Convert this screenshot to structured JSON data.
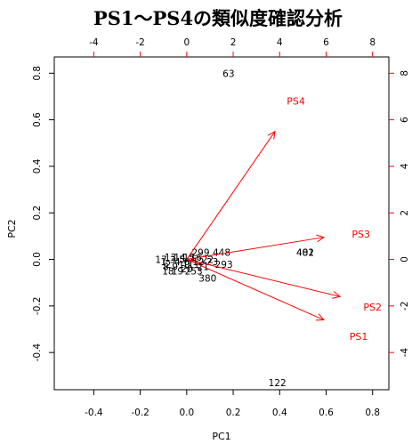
{
  "chart_data": {
    "type": "scatter",
    "subtype": "biplot",
    "title": "PS1～PS4の類似度確認分析",
    "xlabel": "PC1",
    "ylabel": "PC2",
    "grid": false,
    "legend": "none",
    "xlim": [
      -0.57,
      0.87
    ],
    "ylim": [
      -0.56,
      0.87
    ],
    "x_ticks": [
      "-0.4",
      "-0.2",
      "0.0",
      "0.2",
      "0.4",
      "0.6",
      "0.8"
    ],
    "y_ticks": [
      "-0.4",
      "-0.2",
      "0.0",
      "0.2",
      "0.4",
      "0.6",
      "0.8"
    ],
    "top_axis": {
      "lim": [
        -5.7,
        8.7
      ],
      "ticks": [
        "-4",
        "-2",
        "0",
        "2",
        "4",
        "6",
        "8"
      ],
      "color": "#ff0000"
    },
    "right_axis": {
      "lim": [
        -5.6,
        8.7
      ],
      "ticks": [
        "-4",
        "-2",
        "0",
        "2",
        "4",
        "6",
        "8"
      ],
      "color": "#ff0000"
    },
    "observations": [
      {
        "label": "63",
        "x": 0.18,
        "y": 0.8
      },
      {
        "label": "122",
        "x": 0.39,
        "y": -0.53
      },
      {
        "label": "481",
        "x": 0.51,
        "y": 0.03
      },
      {
        "label": "402",
        "x": 0.51,
        "y": 0.03
      },
      {
        "label": "448",
        "x": 0.15,
        "y": 0.03
      },
      {
        "label": "293",
        "x": 0.16,
        "y": -0.02
      },
      {
        "label": "380",
        "x": 0.09,
        "y": -0.08
      },
      {
        "label": "253",
        "x": 0.03,
        "y": -0.05
      },
      {
        "label": "299",
        "x": 0.06,
        "y": 0.03
      },
      {
        "label": "1",
        "x": -0.1,
        "y": -0.01
      },
      {
        "label": "2",
        "x": -0.08,
        "y": -0.02
      },
      {
        "label": "3",
        "x": -0.06,
        "y": 0.0
      },
      {
        "label": "4",
        "x": -0.04,
        "y": -0.01
      },
      {
        "label": "5",
        "x": -0.02,
        "y": 0.0
      },
      {
        "label": "6",
        "x": 0.0,
        "y": -0.01
      },
      {
        "label": "7",
        "x": 0.02,
        "y": 0.0
      },
      {
        "label": "8",
        "x": -0.09,
        "y": -0.03
      },
      {
        "label": "9",
        "x": -0.05,
        "y": -0.03
      },
      {
        "label": "10",
        "x": -0.01,
        "y": -0.02
      },
      {
        "label": "11",
        "x": 0.03,
        "y": -0.02
      },
      {
        "label": "12",
        "x": 0.05,
        "y": -0.01
      },
      {
        "label": "13",
        "x": -0.07,
        "y": 0.01
      },
      {
        "label": "14",
        "x": -0.03,
        "y": 0.01
      },
      {
        "label": "15",
        "x": 0.01,
        "y": 0.01
      },
      {
        "label": "16",
        "x": 0.04,
        "y": 0.01
      },
      {
        "label": "17",
        "x": -0.11,
        "y": 0.0
      },
      {
        "label": "18",
        "x": -0.08,
        "y": -0.05
      },
      {
        "label": "19",
        "x": -0.04,
        "y": -0.05
      },
      {
        "label": "20",
        "x": 0.0,
        "y": -0.04
      },
      {
        "label": "21",
        "x": 0.07,
        "y": -0.03
      },
      {
        "label": "22",
        "x": 0.09,
        "y": 0.0
      },
      {
        "label": "23",
        "x": 0.11,
        "y": -0.01
      }
    ],
    "loadings": [
      {
        "label": "PS4",
        "x": 3.8,
        "y": 5.5
      },
      {
        "label": "PS3",
        "x": 5.9,
        "y": 0.95
      },
      {
        "label": "PS2",
        "x": 6.6,
        "y": -1.6
      },
      {
        "label": "PS1",
        "x": 5.9,
        "y": -2.6
      }
    ],
    "loading_labels": [
      {
        "label": "PS4",
        "x": 4.7,
        "y": 6.8
      },
      {
        "label": "PS3",
        "x": 7.5,
        "y": 1.1
      },
      {
        "label": "PS2",
        "x": 8.0,
        "y": -2.05
      },
      {
        "label": "PS1",
        "x": 7.4,
        "y": -3.3
      }
    ]
  }
}
